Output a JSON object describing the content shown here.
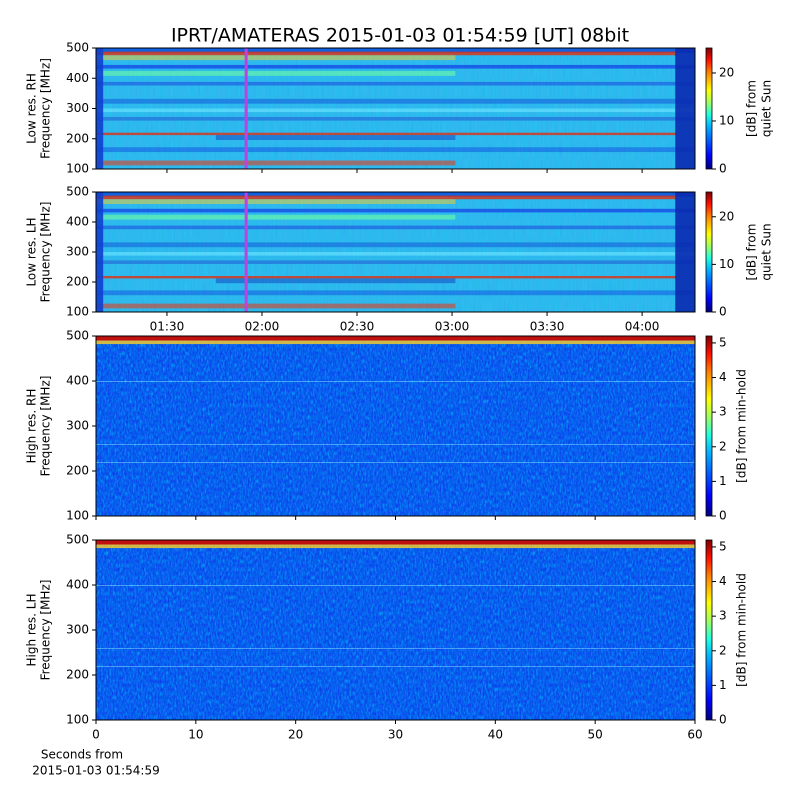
{
  "title": "IPRT/AMATERAS 2015-01-03 01:54:59 [UT]   08bit",
  "chart_data": [
    {
      "type": "heatmap",
      "ylabel": [
        "Low res. RH",
        "Frequency [MHz]"
      ],
      "ylim": [
        100,
        500
      ],
      "yticks": [
        100,
        200,
        300,
        400,
        500
      ],
      "xlim": [
        67.6,
        256.7
      ],
      "marker_x": 115,
      "marker_color": "#c040e0",
      "colorbar_label": [
        "[dB] from",
        "quiet Sun"
      ],
      "clim": [
        0,
        25.2
      ],
      "cticks": [
        0,
        10,
        20
      ]
    },
    {
      "type": "heatmap",
      "ylabel": [
        "Low res. LH",
        "Frequency [MHz]"
      ],
      "ylim": [
        100,
        500
      ],
      "yticks": [
        100,
        200,
        300,
        400,
        500
      ],
      "xlim": [
        67.6,
        256.7
      ],
      "xticks": [
        {
          "value": 90,
          "label": "01:30"
        },
        {
          "value": 120,
          "label": "02:00"
        },
        {
          "value": 150,
          "label": "02:30"
        },
        {
          "value": 180,
          "label": "03:00"
        },
        {
          "value": 210,
          "label": "03:30"
        },
        {
          "value": 240,
          "label": "04:00"
        }
      ],
      "marker_x": 115,
      "marker_color": "#c040e0",
      "colorbar_label": [
        "[dB] from",
        "quiet Sun"
      ],
      "clim": [
        0,
        25.2
      ],
      "cticks": [
        0,
        10,
        20
      ]
    },
    {
      "type": "heatmap",
      "ylabel": [
        "High res. RH",
        "Frequency [MHz]"
      ],
      "ylim": [
        100,
        500
      ],
      "yticks": [
        100,
        200,
        300,
        400,
        500
      ],
      "xlim": [
        0,
        60
      ],
      "colorbar_label": [
        "[dB] from min-hold"
      ],
      "clim": [
        0,
        5.2
      ],
      "cticks": [
        0,
        1,
        2,
        3,
        4,
        5
      ]
    },
    {
      "type": "heatmap",
      "ylabel": [
        "High res. LH",
        "Frequency [MHz]"
      ],
      "ylim": [
        100,
        500
      ],
      "yticks": [
        100,
        200,
        300,
        400,
        500
      ],
      "xlim": [
        0,
        60
      ],
      "xticks": [
        0,
        10,
        20,
        30,
        40,
        50,
        60
      ],
      "xlabel": [
        "Seconds from",
        "2015-01-03 01:54:59"
      ],
      "colorbar_label": [
        "[dB] from min-hold"
      ],
      "clim": [
        0,
        5.2
      ],
      "cticks": [
        0,
        1,
        2,
        3,
        4,
        5
      ]
    }
  ]
}
